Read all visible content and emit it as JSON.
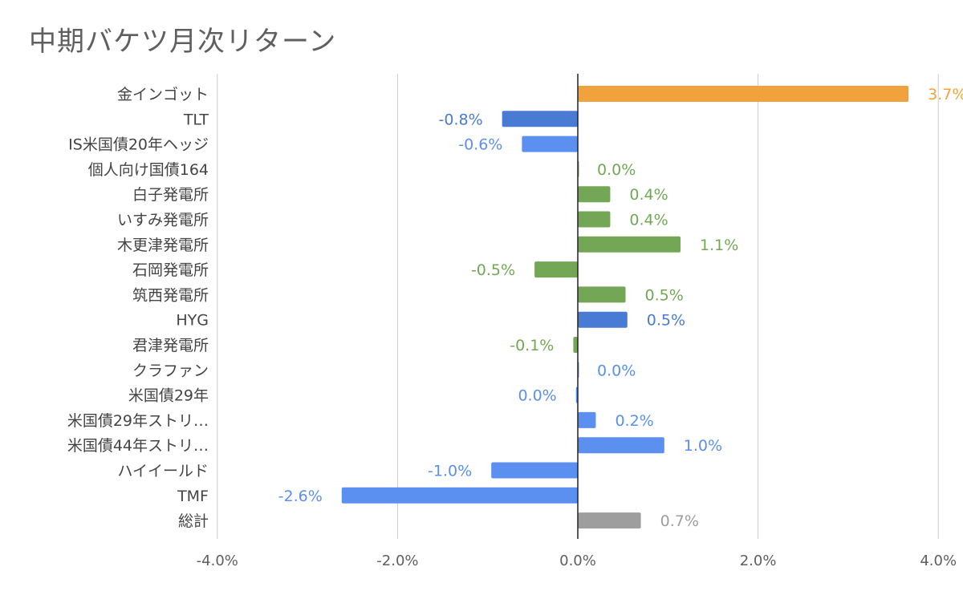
{
  "chart_data": {
    "type": "bar",
    "orientation": "horizontal",
    "title": "中期バケツ月次リターン",
    "xlabel": "",
    "ylabel": "",
    "xlim": [
      -4.0,
      4.0
    ],
    "x_ticks": [
      "-4.0%",
      "-2.0%",
      "0.0%",
      "2.0%",
      "4.0%"
    ],
    "x_tick_values": [
      -4,
      -2,
      0,
      2,
      4
    ],
    "grid": true,
    "legend": "none",
    "colors": {
      "orange": "#f2a23c",
      "darkblue": "#4a7bd4",
      "blue": "#5b8ff0",
      "green": "#73a756",
      "gray": "#9e9e9e"
    },
    "categories": [
      "金インゴット",
      "TLT",
      "IS米国債20年ヘッジ",
      "個人向け国債164",
      "白子発電所",
      "いすみ発電所",
      "木更津発電所",
      "石岡発電所",
      "筑西発電所",
      "HYG",
      "君津発電所",
      "クラファン",
      "米国債29年",
      "米国債29年ストリ…",
      "米国債44年ストリ…",
      "ハイイールド",
      "TMF",
      "総計"
    ],
    "values": [
      3.67,
      -0.84,
      -0.62,
      0.0,
      0.36,
      0.36,
      1.14,
      -0.48,
      0.53,
      0.55,
      -0.05,
      0.0,
      -0.02,
      0.2,
      0.96,
      -0.96,
      -2.62,
      0.7
    ],
    "data_labels": [
      "3.7%",
      "-0.8%",
      "-0.6%",
      "0.0%",
      "0.4%",
      "0.4%",
      "1.1%",
      "-0.5%",
      "0.5%",
      "0.5%",
      "-0.1%",
      "0.0%",
      "0.0%",
      "0.2%",
      "1.0%",
      "-1.0%",
      "-2.6%",
      "0.7%"
    ],
    "bar_colors": [
      "orange",
      "darkblue",
      "blue",
      "green",
      "green",
      "green",
      "green",
      "green",
      "green",
      "darkblue",
      "green",
      "blue",
      "blue",
      "blue",
      "blue",
      "blue",
      "blue",
      "gray"
    ]
  }
}
